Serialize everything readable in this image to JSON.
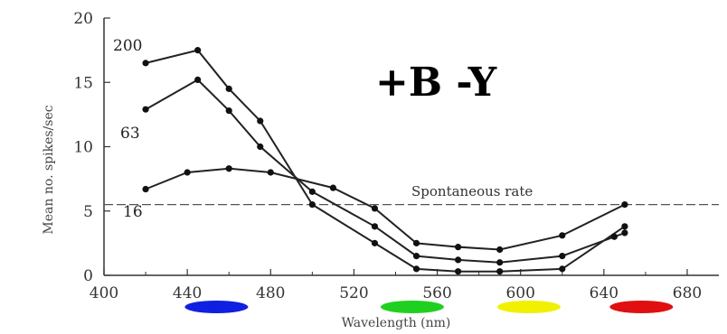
{
  "chart_data": {
    "type": "line",
    "title": "",
    "annotation_main": "+B -Y",
    "xlabel": "Wavelength (nm)",
    "ylabel": "Mean no. spikes/sec",
    "xlim": [
      400,
      680
    ],
    "ylim": [
      0,
      20
    ],
    "x_ticks": [
      400,
      440,
      480,
      520,
      560,
      600,
      640,
      680
    ],
    "y_ticks": [
      0,
      5,
      10,
      15,
      20
    ],
    "grid": false,
    "series": [
      {
        "name": "200",
        "x": [
          420,
          445,
          460,
          475,
          500,
          530,
          550,
          570,
          590,
          620,
          650
        ],
        "values": [
          16.5,
          17.5,
          14.5,
          12,
          5.5,
          2.5,
          0.5,
          0.3,
          0.3,
          0.5,
          3.8
        ]
      },
      {
        "name": "63",
        "x": [
          420,
          445,
          460,
          475,
          500,
          530,
          550,
          570,
          590,
          620,
          645,
          650
        ],
        "values": [
          12.9,
          15.2,
          12.8,
          10,
          6.5,
          3.8,
          1.5,
          1.2,
          1.0,
          1.5,
          3.0,
          3.3
        ]
      },
      {
        "name": "16",
        "x": [
          420,
          440,
          460,
          480,
          510,
          530,
          550,
          570,
          590,
          620,
          650
        ],
        "values": [
          6.7,
          8.0,
          8.3,
          8.0,
          6.8,
          5.2,
          2.5,
          2.2,
          2.0,
          3.1,
          5.5
        ]
      }
    ],
    "reference_line": {
      "label": "Spontaneous rate",
      "value": 5.5
    },
    "color_marks": [
      {
        "color": "#1020e0",
        "x_center": 454
      },
      {
        "color": "#20d020",
        "x_center": 548
      },
      {
        "color": "#f0f000",
        "x_center": 604
      },
      {
        "color": "#e01010",
        "x_center": 658
      }
    ]
  }
}
